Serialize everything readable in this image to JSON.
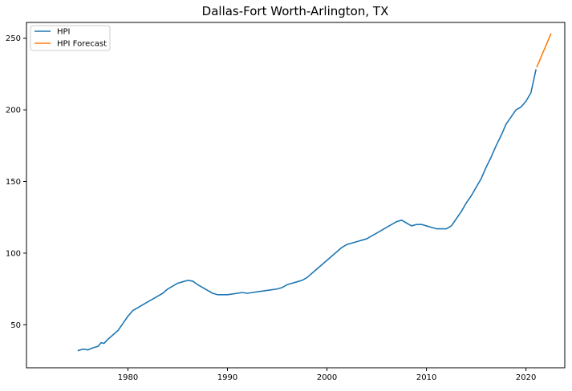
{
  "chart_data": {
    "type": "line",
    "title": "Dallas-Fort Worth-Arlington, TX",
    "xlabel": "",
    "ylabel": "",
    "xlim": [
      1969.8,
      2023.9
    ],
    "ylim": [
      20,
      261
    ],
    "x_ticks": [
      1980,
      1990,
      2000,
      2010,
      2020
    ],
    "x_tick_labels": [
      "1980",
      "1990",
      "2000",
      "2010",
      "2020"
    ],
    "y_ticks": [
      50,
      100,
      150,
      200,
      250
    ],
    "y_tick_labels": [
      "50",
      "100",
      "150",
      "200",
      "250"
    ],
    "grid": false,
    "legend": {
      "position": "top-left",
      "entries": [
        "HPI",
        "HPI Forecast"
      ]
    },
    "series": [
      {
        "name": "HPI",
        "color": "#1f77b4",
        "x": [
          1975.0,
          1975.5,
          1976.0,
          1976.5,
          1977.0,
          1977.3,
          1977.6,
          1978.0,
          1978.5,
          1979.0,
          1979.5,
          1980.0,
          1980.5,
          1981.0,
          1981.5,
          1982.0,
          1982.5,
          1983.0,
          1983.5,
          1984.0,
          1984.5,
          1985.0,
          1985.5,
          1986.0,
          1986.5,
          1987.0,
          1987.5,
          1988.0,
          1988.5,
          1989.0,
          1989.5,
          1990.0,
          1990.5,
          1991.0,
          1991.5,
          1992.0,
          1992.5,
          1993.0,
          1993.5,
          1994.0,
          1994.5,
          1995.0,
          1995.5,
          1996.0,
          1996.5,
          1997.0,
          1997.5,
          1998.0,
          1998.5,
          1999.0,
          1999.5,
          2000.0,
          2000.5,
          2001.0,
          2001.5,
          2002.0,
          2002.5,
          2003.0,
          2003.5,
          2004.0,
          2004.5,
          2005.0,
          2005.5,
          2006.0,
          2006.5,
          2007.0,
          2007.5,
          2008.0,
          2008.5,
          2009.0,
          2009.5,
          2010.0,
          2010.5,
          2011.0,
          2011.5,
          2012.0,
          2012.5,
          2013.0,
          2013.5,
          2014.0,
          2014.5,
          2015.0,
          2015.5,
          2016.0,
          2016.5,
          2017.0,
          2017.5,
          2018.0,
          2018.5,
          2019.0,
          2019.5,
          2020.0,
          2020.5,
          2021.0
        ],
        "values": [
          32,
          33,
          32.5,
          34,
          35,
          37.5,
          37,
          40,
          43,
          46,
          51,
          56,
          60,
          62,
          64,
          66,
          68,
          70,
          72,
          75,
          77,
          79,
          80,
          81,
          80.5,
          78,
          76,
          74,
          72,
          71,
          71,
          71,
          71.5,
          72,
          72.5,
          72,
          72.5,
          73,
          73.5,
          74,
          74.5,
          75,
          76,
          78,
          79,
          80,
          81,
          83,
          86,
          89,
          92,
          95,
          98,
          101,
          104,
          106,
          107,
          108,
          109,
          110,
          112,
          114,
          116,
          118,
          120,
          122,
          123,
          121,
          119,
          120,
          120,
          119,
          118,
          117,
          117,
          117,
          119,
          124,
          129,
          135,
          140,
          146,
          152,
          160,
          167,
          175,
          182,
          190,
          195,
          200,
          202,
          206,
          212,
          228
        ]
      },
      {
        "name": "HPI Forecast",
        "color": "#ff7f0e",
        "x": [
          2021.1,
          2022.5
        ],
        "values": [
          230,
          253
        ]
      }
    ]
  }
}
